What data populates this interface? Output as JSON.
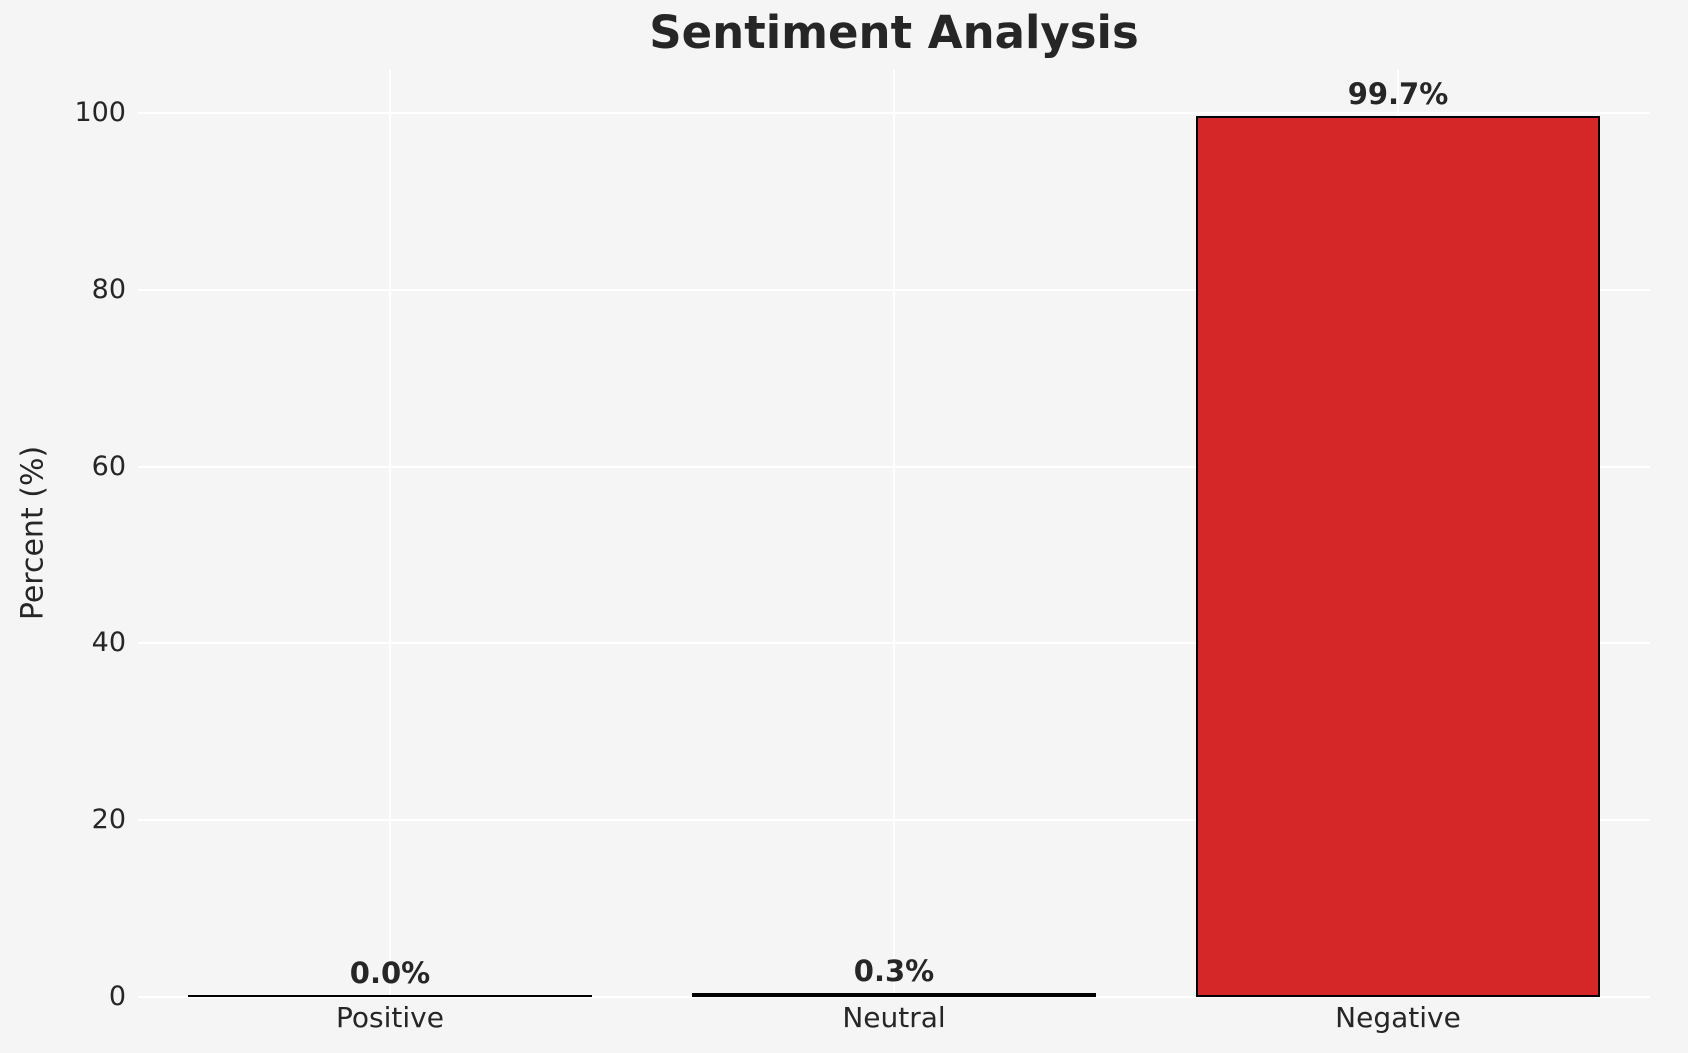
{
  "chart_data": {
    "type": "bar",
    "title": "Sentiment Analysis",
    "xlabel": "",
    "ylabel": "Percent (%)",
    "categories": [
      "Positive",
      "Neutral",
      "Negative"
    ],
    "values": [
      0.0,
      0.3,
      99.7
    ],
    "value_labels": [
      "0.0%",
      "0.3%",
      "99.7%"
    ],
    "yticks": [
      0,
      20,
      40,
      60,
      80,
      100
    ],
    "ylim": [
      0,
      105
    ],
    "grid": true,
    "legend": "none",
    "colors": {
      "background": "#f5f5f5",
      "grid_line": "#ffffff",
      "text": "#262626",
      "bar_fill": "#d62728",
      "bar_edge": "#000000"
    }
  }
}
